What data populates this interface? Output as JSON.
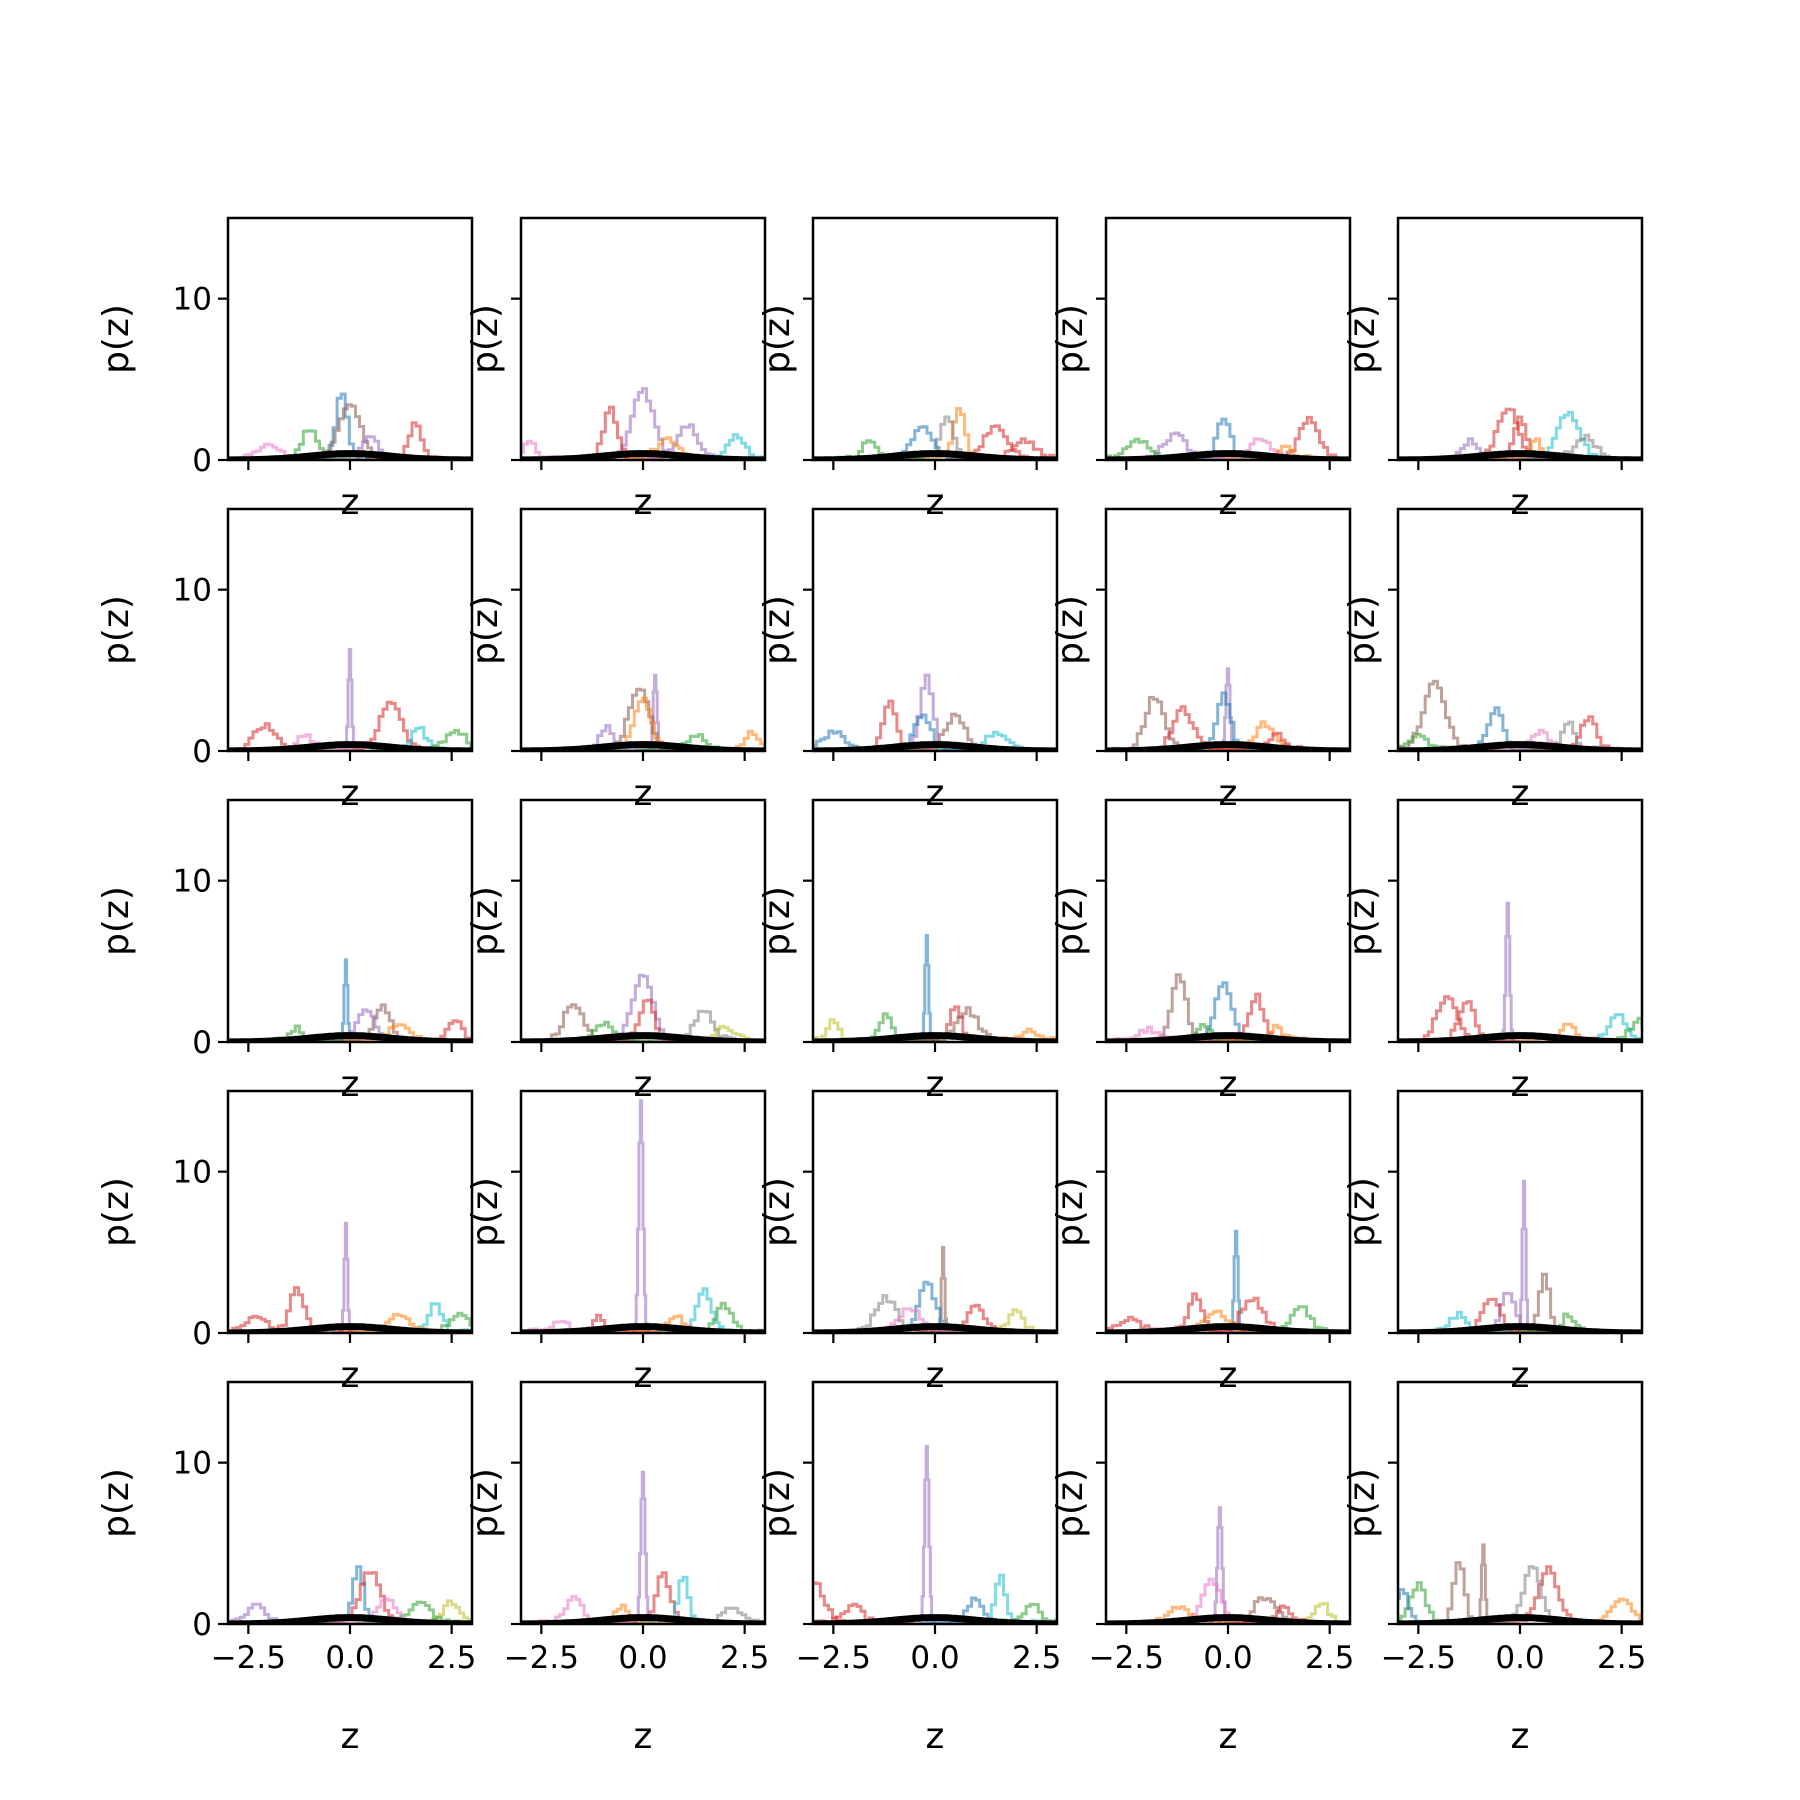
{
  "figure": {
    "rows": 5,
    "cols": 5,
    "sharex": true,
    "sharey": true
  },
  "chart_data": {
    "type": "histogram-grid",
    "xlabel": "z",
    "ylabel": "p(z)",
    "xlim": [
      -3.0,
      3.0
    ],
    "ylim": [
      0,
      15
    ],
    "xticks": [
      -2.5,
      0.0,
      2.5
    ],
    "xtick_labels": [
      "−2.5",
      "0.0",
      "2.5"
    ],
    "yticks": [
      0,
      10
    ],
    "ytick_labels": [
      "0",
      "10"
    ],
    "reference_curve": {
      "type": "standard-normal-pdf",
      "color": "#000000"
    },
    "series_colors": [
      "#1f77b4",
      "#ff7f0e",
      "#2ca02c",
      "#d62728",
      "#9467bd",
      "#8c564b",
      "#e377c2",
      "#7f7f7f",
      "#bcbd22",
      "#17becf"
    ],
    "panels": [
      {
        "row": 0,
        "col": 0,
        "peaks": [
          {
            "x": -0.2,
            "h": 4.2,
            "c": 0
          },
          {
            "x": 0.0,
            "h": 3.3,
            "c": 5
          },
          {
            "x": 1.6,
            "h": 2.2,
            "c": 3
          },
          {
            "x": -1.0,
            "h": 1.8,
            "c": 2
          },
          {
            "x": 0.5,
            "h": 1.4,
            "c": 4
          },
          {
            "x": -2.0,
            "h": 0.9,
            "c": 6
          }
        ]
      },
      {
        "row": 0,
        "col": 1,
        "peaks": [
          {
            "x": 0.0,
            "h": 4.2,
            "c": 4
          },
          {
            "x": -0.8,
            "h": 3.0,
            "c": 3
          },
          {
            "x": 1.1,
            "h": 2.0,
            "c": 4
          },
          {
            "x": 2.3,
            "h": 1.3,
            "c": 9
          },
          {
            "x": -2.8,
            "h": 0.9,
            "c": 6
          },
          {
            "x": 0.6,
            "h": 1.1,
            "c": 1
          }
        ]
      },
      {
        "row": 0,
        "col": 2,
        "peaks": [
          {
            "x": 0.6,
            "h": 3.1,
            "c": 1
          },
          {
            "x": 0.3,
            "h": 2.6,
            "c": 7
          },
          {
            "x": 1.5,
            "h": 2.0,
            "c": 3
          },
          {
            "x": -0.3,
            "h": 1.8,
            "c": 0
          },
          {
            "x": -1.6,
            "h": 1.2,
            "c": 2
          },
          {
            "x": 2.2,
            "h": 1.1,
            "c": 3
          }
        ]
      },
      {
        "row": 0,
        "col": 3,
        "peaks": [
          {
            "x": -0.1,
            "h": 2.3,
            "c": 0
          },
          {
            "x": 2.0,
            "h": 2.4,
            "c": 3
          },
          {
            "x": -1.3,
            "h": 1.4,
            "c": 4
          },
          {
            "x": 0.8,
            "h": 1.2,
            "c": 6
          },
          {
            "x": -2.2,
            "h": 1.0,
            "c": 2
          },
          {
            "x": 1.4,
            "h": 0.8,
            "c": 1
          }
        ]
      },
      {
        "row": 0,
        "col": 4,
        "peaks": [
          {
            "x": 1.2,
            "h": 2.8,
            "c": 9
          },
          {
            "x": -0.3,
            "h": 3.1,
            "c": 3
          },
          {
            "x": 0.0,
            "h": 2.4,
            "c": 3
          },
          {
            "x": -1.2,
            "h": 1.0,
            "c": 4
          },
          {
            "x": 1.6,
            "h": 1.2,
            "c": 7
          },
          {
            "x": 0.4,
            "h": 1.0,
            "c": 1
          }
        ]
      },
      {
        "row": 1,
        "col": 0,
        "peaks": [
          {
            "x": 0.0,
            "h": 6.3,
            "c": 4
          },
          {
            "x": 1.0,
            "h": 2.8,
            "c": 3
          },
          {
            "x": -2.1,
            "h": 1.4,
            "c": 3
          },
          {
            "x": 1.7,
            "h": 1.2,
            "c": 9
          },
          {
            "x": 2.6,
            "h": 1.2,
            "c": 2
          },
          {
            "x": -1.1,
            "h": 0.9,
            "c": 6
          }
        ]
      },
      {
        "row": 1,
        "col": 1,
        "peaks": [
          {
            "x": 0.3,
            "h": 4.7,
            "c": 4
          },
          {
            "x": -0.1,
            "h": 3.7,
            "c": 5
          },
          {
            "x": 0.0,
            "h": 3.0,
            "c": 1
          },
          {
            "x": -0.9,
            "h": 1.3,
            "c": 4
          },
          {
            "x": 2.7,
            "h": 1.0,
            "c": 1
          },
          {
            "x": 1.3,
            "h": 0.9,
            "c": 2
          }
        ]
      },
      {
        "row": 1,
        "col": 2,
        "peaks": [
          {
            "x": -0.2,
            "h": 4.4,
            "c": 4
          },
          {
            "x": -1.1,
            "h": 2.8,
            "c": 3
          },
          {
            "x": 0.5,
            "h": 2.0,
            "c": 5
          },
          {
            "x": -2.5,
            "h": 1.0,
            "c": 0
          },
          {
            "x": 1.5,
            "h": 0.9,
            "c": 9
          },
          {
            "x": -0.3,
            "h": 2.2,
            "c": 0
          }
        ]
      },
      {
        "row": 1,
        "col": 3,
        "peaks": [
          {
            "x": 0.0,
            "h": 5.1,
            "c": 4
          },
          {
            "x": -1.8,
            "h": 3.2,
            "c": 5
          },
          {
            "x": -0.1,
            "h": 3.3,
            "c": 0
          },
          {
            "x": -1.1,
            "h": 2.4,
            "c": 3
          },
          {
            "x": 0.9,
            "h": 1.5,
            "c": 1
          },
          {
            "x": 1.2,
            "h": 1.0,
            "c": 3
          }
        ]
      },
      {
        "row": 1,
        "col": 4,
        "peaks": [
          {
            "x": -2.1,
            "h": 4.0,
            "c": 5
          },
          {
            "x": -0.6,
            "h": 2.5,
            "c": 0
          },
          {
            "x": 1.7,
            "h": 2.0,
            "c": 3
          },
          {
            "x": 1.2,
            "h": 1.6,
            "c": 7
          },
          {
            "x": -2.5,
            "h": 1.0,
            "c": 2
          },
          {
            "x": 0.5,
            "h": 1.1,
            "c": 6
          }
        ]
      },
      {
        "row": 2,
        "col": 0,
        "peaks": [
          {
            "x": -0.1,
            "h": 5.1,
            "c": 0
          },
          {
            "x": 0.8,
            "h": 2.2,
            "c": 5
          },
          {
            "x": 0.4,
            "h": 1.7,
            "c": 4
          },
          {
            "x": -1.3,
            "h": 0.8,
            "c": 2
          },
          {
            "x": 2.6,
            "h": 1.1,
            "c": 3
          },
          {
            "x": 1.2,
            "h": 0.8,
            "c": 1
          }
        ]
      },
      {
        "row": 2,
        "col": 1,
        "peaks": [
          {
            "x": 0.0,
            "h": 4.0,
            "c": 4
          },
          {
            "x": -1.7,
            "h": 2.3,
            "c": 5
          },
          {
            "x": 1.5,
            "h": 1.8,
            "c": 7
          },
          {
            "x": 0.1,
            "h": 2.4,
            "c": 3
          },
          {
            "x": -1.0,
            "h": 1.0,
            "c": 2
          },
          {
            "x": 2.0,
            "h": 0.7,
            "c": 8
          }
        ]
      },
      {
        "row": 2,
        "col": 2,
        "peaks": [
          {
            "x": -0.2,
            "h": 6.6,
            "c": 0
          },
          {
            "x": 0.5,
            "h": 2.2,
            "c": 3
          },
          {
            "x": -1.2,
            "h": 1.5,
            "c": 2
          },
          {
            "x": 0.8,
            "h": 1.8,
            "c": 5
          },
          {
            "x": -2.5,
            "h": 1.1,
            "c": 8
          },
          {
            "x": 2.3,
            "h": 0.7,
            "c": 1
          }
        ]
      },
      {
        "row": 2,
        "col": 3,
        "peaks": [
          {
            "x": -1.2,
            "h": 3.9,
            "c": 5
          },
          {
            "x": -0.1,
            "h": 3.6,
            "c": 0
          },
          {
            "x": 0.7,
            "h": 2.7,
            "c": 3
          },
          {
            "x": -0.6,
            "h": 1.0,
            "c": 2
          },
          {
            "x": 1.2,
            "h": 0.9,
            "c": 1
          },
          {
            "x": -2.0,
            "h": 0.6,
            "c": 6
          }
        ]
      },
      {
        "row": 2,
        "col": 4,
        "peaks": [
          {
            "x": -0.3,
            "h": 8.6,
            "c": 4
          },
          {
            "x": -1.8,
            "h": 2.6,
            "c": 3
          },
          {
            "x": -1.3,
            "h": 2.4,
            "c": 3
          },
          {
            "x": 2.4,
            "h": 1.6,
            "c": 9
          },
          {
            "x": 1.2,
            "h": 1.0,
            "c": 1
          },
          {
            "x": 2.9,
            "h": 1.2,
            "c": 2
          }
        ]
      },
      {
        "row": 3,
        "col": 0,
        "peaks": [
          {
            "x": -0.1,
            "h": 6.8,
            "c": 4
          },
          {
            "x": -1.3,
            "h": 2.6,
            "c": 3
          },
          {
            "x": 2.1,
            "h": 1.7,
            "c": 9
          },
          {
            "x": -2.3,
            "h": 0.9,
            "c": 3
          },
          {
            "x": 1.2,
            "h": 0.9,
            "c": 1
          },
          {
            "x": 2.7,
            "h": 0.9,
            "c": 2
          }
        ]
      },
      {
        "row": 3,
        "col": 1,
        "peaks": [
          {
            "x": -0.05,
            "h": 14.4,
            "c": 4
          },
          {
            "x": 1.5,
            "h": 2.5,
            "c": 9
          },
          {
            "x": 2.0,
            "h": 1.6,
            "c": 2
          },
          {
            "x": -1.1,
            "h": 0.9,
            "c": 3
          },
          {
            "x": 0.8,
            "h": 1.0,
            "c": 1
          },
          {
            "x": -2.0,
            "h": 0.7,
            "c": 6
          }
        ]
      },
      {
        "row": 3,
        "col": 2,
        "peaks": [
          {
            "x": 0.2,
            "h": 5.3,
            "c": 5
          },
          {
            "x": -0.2,
            "h": 3.0,
            "c": 0
          },
          {
            "x": -1.2,
            "h": 2.0,
            "c": 7
          },
          {
            "x": 1.0,
            "h": 1.5,
            "c": 3
          },
          {
            "x": 2.0,
            "h": 1.2,
            "c": 8
          },
          {
            "x": -0.6,
            "h": 1.4,
            "c": 6
          }
        ]
      },
      {
        "row": 3,
        "col": 3,
        "peaks": [
          {
            "x": 0.2,
            "h": 6.3,
            "c": 0
          },
          {
            "x": -0.8,
            "h": 2.2,
            "c": 3
          },
          {
            "x": 0.6,
            "h": 2.0,
            "c": 3
          },
          {
            "x": 1.8,
            "h": 1.5,
            "c": 2
          },
          {
            "x": -2.4,
            "h": 0.8,
            "c": 3
          },
          {
            "x": -0.3,
            "h": 1.2,
            "c": 1
          }
        ]
      },
      {
        "row": 3,
        "col": 4,
        "peaks": [
          {
            "x": 0.1,
            "h": 9.4,
            "c": 4
          },
          {
            "x": 0.6,
            "h": 3.4,
            "c": 5
          },
          {
            "x": -0.3,
            "h": 2.5,
            "c": 4
          },
          {
            "x": -0.7,
            "h": 2.0,
            "c": 3
          },
          {
            "x": -1.5,
            "h": 1.0,
            "c": 9
          },
          {
            "x": 1.2,
            "h": 1.0,
            "c": 2
          }
        ]
      },
      {
        "row": 4,
        "col": 0,
        "peaks": [
          {
            "x": 0.2,
            "h": 3.4,
            "c": 0
          },
          {
            "x": 0.5,
            "h": 3.1,
            "c": 3
          },
          {
            "x": -2.3,
            "h": 1.0,
            "c": 4
          },
          {
            "x": 2.5,
            "h": 1.2,
            "c": 8
          },
          {
            "x": 1.7,
            "h": 1.1,
            "c": 2
          },
          {
            "x": 0.9,
            "h": 1.4,
            "c": 6
          }
        ]
      },
      {
        "row": 4,
        "col": 1,
        "peaks": [
          {
            "x": 0.0,
            "h": 9.4,
            "c": 4
          },
          {
            "x": 0.5,
            "h": 3.0,
            "c": 3
          },
          {
            "x": 1.0,
            "h": 2.8,
            "c": 9
          },
          {
            "x": -1.7,
            "h": 1.5,
            "c": 6
          },
          {
            "x": -0.5,
            "h": 1.1,
            "c": 1
          },
          {
            "x": 2.2,
            "h": 0.9,
            "c": 7
          }
        ]
      },
      {
        "row": 4,
        "col": 2,
        "peaks": [
          {
            "x": -0.2,
            "h": 11.0,
            "c": 4
          },
          {
            "x": 1.6,
            "h": 2.8,
            "c": 9
          },
          {
            "x": -3.0,
            "h": 2.5,
            "c": 3
          },
          {
            "x": 2.4,
            "h": 1.1,
            "c": 2
          },
          {
            "x": 1.0,
            "h": 1.4,
            "c": 0
          },
          {
            "x": -2.0,
            "h": 1.0,
            "c": 3
          }
        ]
      },
      {
        "row": 4,
        "col": 3,
        "peaks": [
          {
            "x": -0.2,
            "h": 7.2,
            "c": 4
          },
          {
            "x": -0.4,
            "h": 2.6,
            "c": 6
          },
          {
            "x": 2.3,
            "h": 1.2,
            "c": 8
          },
          {
            "x": 0.9,
            "h": 1.5,
            "c": 5
          },
          {
            "x": -1.2,
            "h": 0.9,
            "c": 1
          },
          {
            "x": 1.4,
            "h": 1.0,
            "c": 3
          }
        ]
      },
      {
        "row": 4,
        "col": 4,
        "peaks": [
          {
            "x": -0.9,
            "h": 4.9,
            "c": 5
          },
          {
            "x": -1.5,
            "h": 3.8,
            "c": 5
          },
          {
            "x": 0.7,
            "h": 3.2,
            "c": 3
          },
          {
            "x": 0.3,
            "h": 3.3,
            "c": 7
          },
          {
            "x": -2.5,
            "h": 2.3,
            "c": 2
          },
          {
            "x": -2.9,
            "h": 1.9,
            "c": 0
          },
          {
            "x": 2.5,
            "h": 1.4,
            "c": 1
          }
        ]
      }
    ]
  }
}
